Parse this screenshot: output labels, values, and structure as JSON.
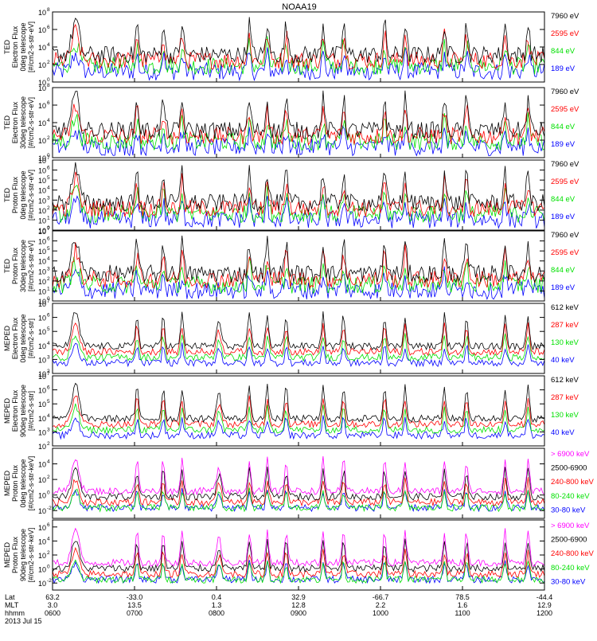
{
  "title": "NOAA19",
  "colors": {
    "blue": "#0000ff",
    "red": "#ff0000",
    "green": "#00e000",
    "black": "#000000",
    "magenta": "#ff00ff"
  },
  "chart_data": [
    {
      "type": "line",
      "ylabel": [
        "TED",
        "Electron Flux",
        "0deg telescope",
        "[#/cm2-s-str-eV]"
      ],
      "y_scale": "log",
      "y_ticks": [
        "10",
        "10",
        "10",
        "10",
        "10"
      ],
      "y_tick_exp": [
        "0",
        "2",
        "4",
        "6",
        "8"
      ],
      "y_range_exp": [
        0,
        8
      ],
      "legend": [
        {
          "label": "7960 eV",
          "color": "#000000"
        },
        {
          "label": "2595 eV",
          "color": "#ff0000"
        },
        {
          "label": "844 eV",
          "color": "#00e000"
        },
        {
          "label": "189 eV",
          "color": "#0000ff"
        }
      ]
    },
    {
      "type": "line",
      "ylabel": [
        "TED",
        "Electron Flux",
        "30deg telescope",
        "[#/cm2-s-str-eV]"
      ],
      "y_scale": "log",
      "y_ticks": [
        "10",
        "10",
        "10",
        "10",
        "10"
      ],
      "y_tick_exp": [
        "0",
        "2",
        "4",
        "6",
        "8"
      ],
      "y_range_exp": [
        0,
        8
      ],
      "legend": [
        {
          "label": "7960 eV",
          "color": "#000000"
        },
        {
          "label": "2595 eV",
          "color": "#ff0000"
        },
        {
          "label": "844 eV",
          "color": "#00e000"
        },
        {
          "label": "189 eV",
          "color": "#0000ff"
        }
      ]
    },
    {
      "type": "line",
      "ylabel": [
        "TED",
        "Proton Flux",
        "0deg telescope",
        "[#/cm2-s-str-eV]"
      ],
      "y_scale": "log",
      "y_ticks": [
        "10",
        "10",
        "10",
        "10",
        "10",
        "10",
        "10",
        "10"
      ],
      "y_tick_exp": [
        "0",
        "1",
        "2",
        "3",
        "4",
        "5",
        "6",
        "7"
      ],
      "y_range_exp": [
        0,
        7
      ],
      "legend": [
        {
          "label": "7960 eV",
          "color": "#000000"
        },
        {
          "label": "2595 eV",
          "color": "#ff0000"
        },
        {
          "label": "844 eV",
          "color": "#00e000"
        },
        {
          "label": "189 eV",
          "color": "#0000ff"
        }
      ]
    },
    {
      "type": "line",
      "ylabel": [
        "TED",
        "Proton Flux",
        "30deg telescope",
        "[#/cm2-s-str-eV]"
      ],
      "y_scale": "log",
      "y_ticks": [
        "10",
        "10",
        "10",
        "10",
        "10",
        "10",
        "10",
        "10"
      ],
      "y_tick_exp": [
        "0",
        "1",
        "2",
        "3",
        "4",
        "5",
        "6",
        "7"
      ],
      "y_range_exp": [
        0,
        7
      ],
      "legend": [
        {
          "label": "7960 eV",
          "color": "#000000"
        },
        {
          "label": "2595 eV",
          "color": "#ff0000"
        },
        {
          "label": "844 eV",
          "color": "#00e000"
        },
        {
          "label": "189 eV",
          "color": "#0000ff"
        }
      ]
    },
    {
      "type": "line",
      "ylabel": [
        "MEPED",
        "Electron Flux",
        "0deg telescope",
        "[#/cm2-s-str]"
      ],
      "y_scale": "log",
      "y_ticks": [
        "10",
        "10",
        "10",
        "10",
        "10",
        "10"
      ],
      "y_tick_exp": [
        "2",
        "3",
        "4",
        "5",
        "6",
        "7"
      ],
      "y_range_exp": [
        2,
        7
      ],
      "legend": [
        {
          "label": "612 keV",
          "color": "#000000"
        },
        {
          "label": "287 keV",
          "color": "#ff0000"
        },
        {
          "label": "130 keV",
          "color": "#00e000"
        },
        {
          "label": "40 keV",
          "color": "#0000ff"
        }
      ]
    },
    {
      "type": "line",
      "ylabel": [
        "MEPED",
        "Electron Flux",
        "90deg telescope",
        "[#/cm2-s-str]"
      ],
      "y_scale": "log",
      "y_ticks": [
        "10",
        "10",
        "10",
        "10",
        "10",
        "10"
      ],
      "y_tick_exp": [
        "2",
        "3",
        "4",
        "5",
        "6",
        "7"
      ],
      "y_range_exp": [
        2,
        7
      ],
      "legend": [
        {
          "label": "612 keV",
          "color": "#000000"
        },
        {
          "label": "287 keV",
          "color": "#ff0000"
        },
        {
          "label": "130 keV",
          "color": "#00e000"
        },
        {
          "label": "40 keV",
          "color": "#0000ff"
        }
      ]
    },
    {
      "type": "line",
      "ylabel": [
        "MEPED",
        "Proton Flux",
        "0deg telescope",
        "[#/cm2-s-str-keV]"
      ],
      "y_scale": "log",
      "y_ticks": [
        "10",
        "10",
        "10",
        "10"
      ],
      "y_tick_exp": [
        "-2",
        "0",
        "2",
        "4"
      ],
      "y_range_exp": [
        -3,
        6
      ],
      "legend": [
        {
          "label": "> 6900 keV",
          "color": "#ff00ff"
        },
        {
          "label": "2500-6900",
          "color": "#000000"
        },
        {
          "label": "240-800 keV",
          "color": "#ff0000"
        },
        {
          "label": "80-240 keV",
          "color": "#00e000"
        },
        {
          "label": "30-80 keV",
          "color": "#0000ff"
        }
      ]
    },
    {
      "type": "line",
      "ylabel": [
        "MEPED",
        "Proton Flux",
        "90deg telescope",
        "[#/cm2-s-str-keV]"
      ],
      "y_scale": "log",
      "y_ticks": [
        "10",
        "10",
        "10",
        "10",
        "10"
      ],
      "y_tick_exp": [
        "-2",
        "0",
        "2",
        "4",
        "6"
      ],
      "y_range_exp": [
        -3,
        7
      ],
      "legend": [
        {
          "label": "> 6900 keV",
          "color": "#ff00ff"
        },
        {
          "label": "2500-6900",
          "color": "#000000"
        },
        {
          "label": "240-800 keV",
          "color": "#ff0000"
        },
        {
          "label": "80-240 keV",
          "color": "#00e000"
        },
        {
          "label": "30-80 keV",
          "color": "#0000ff"
        }
      ]
    }
  ],
  "x_axis": {
    "row_labels": [
      "Lat",
      "MLT",
      "hhmm",
      "2013 Jul 15"
    ],
    "time_range_hours": [
      6,
      12
    ],
    "ticks": [
      {
        "time": "0600",
        "lat": "63.2",
        "mlt": "3.0",
        "hours": 6
      },
      {
        "time": "0700",
        "lat": "-33.0",
        "mlt": "13.5",
        "hours": 7
      },
      {
        "time": "0800",
        "lat": "0.4",
        "mlt": "1.3",
        "hours": 8
      },
      {
        "time": "0900",
        "lat": "32.9",
        "mlt": "12.8",
        "hours": 9
      },
      {
        "time": "1000",
        "lat": "-66.7",
        "mlt": "2.2",
        "hours": 10
      },
      {
        "time": "1100",
        "lat": "78.5",
        "mlt": "1.6",
        "hours": 11
      },
      {
        "time": "1200",
        "lat": "-44.4",
        "mlt": "12.9",
        "hours": 12
      }
    ]
  }
}
